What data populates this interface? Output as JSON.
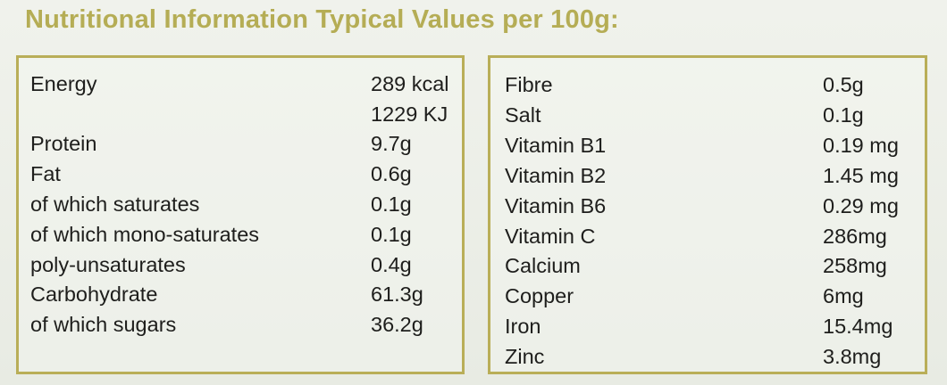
{
  "title": "Nutritional Information Typical Values per 100g:",
  "left_table": [
    {
      "label": "Energy",
      "value": "289 kcal"
    },
    {
      "label": "",
      "value": "1229 KJ"
    },
    {
      "label": "Protein",
      "value": "9.7g"
    },
    {
      "label": "Fat",
      "value": "0.6g"
    },
    {
      "label": "of which saturates",
      "value": "0.1g"
    },
    {
      "label": "of which mono-saturates",
      "value": "0.1g"
    },
    {
      "label": "poly-unsaturates",
      "value": "0.4g"
    },
    {
      "label": "Carbohydrate",
      "value": "61.3g"
    },
    {
      "label": "of which sugars",
      "value": "36.2g"
    }
  ],
  "right_table": [
    {
      "label": "Fibre",
      "value": "0.5g"
    },
    {
      "label": "Salt",
      "value": "0.1g"
    },
    {
      "label": "Vitamin B1",
      "value": "0.19 mg"
    },
    {
      "label": "Vitamin B2",
      "value": "1.45 mg"
    },
    {
      "label": "Vitamin B6",
      "value": "0.29 mg"
    },
    {
      "label": "Vitamin C",
      "value": "286mg"
    },
    {
      "label": "Calcium",
      "value": "258mg"
    },
    {
      "label": "Copper",
      "value": "6mg"
    },
    {
      "label": "Iron",
      "value": "15.4mg"
    },
    {
      "label": "Zinc",
      "value": "3.8mg"
    }
  ],
  "colors": {
    "title": "#b5ad55",
    "border": "#b9ae58",
    "text": "#1e1e1c",
    "background": "#ecefe8"
  }
}
